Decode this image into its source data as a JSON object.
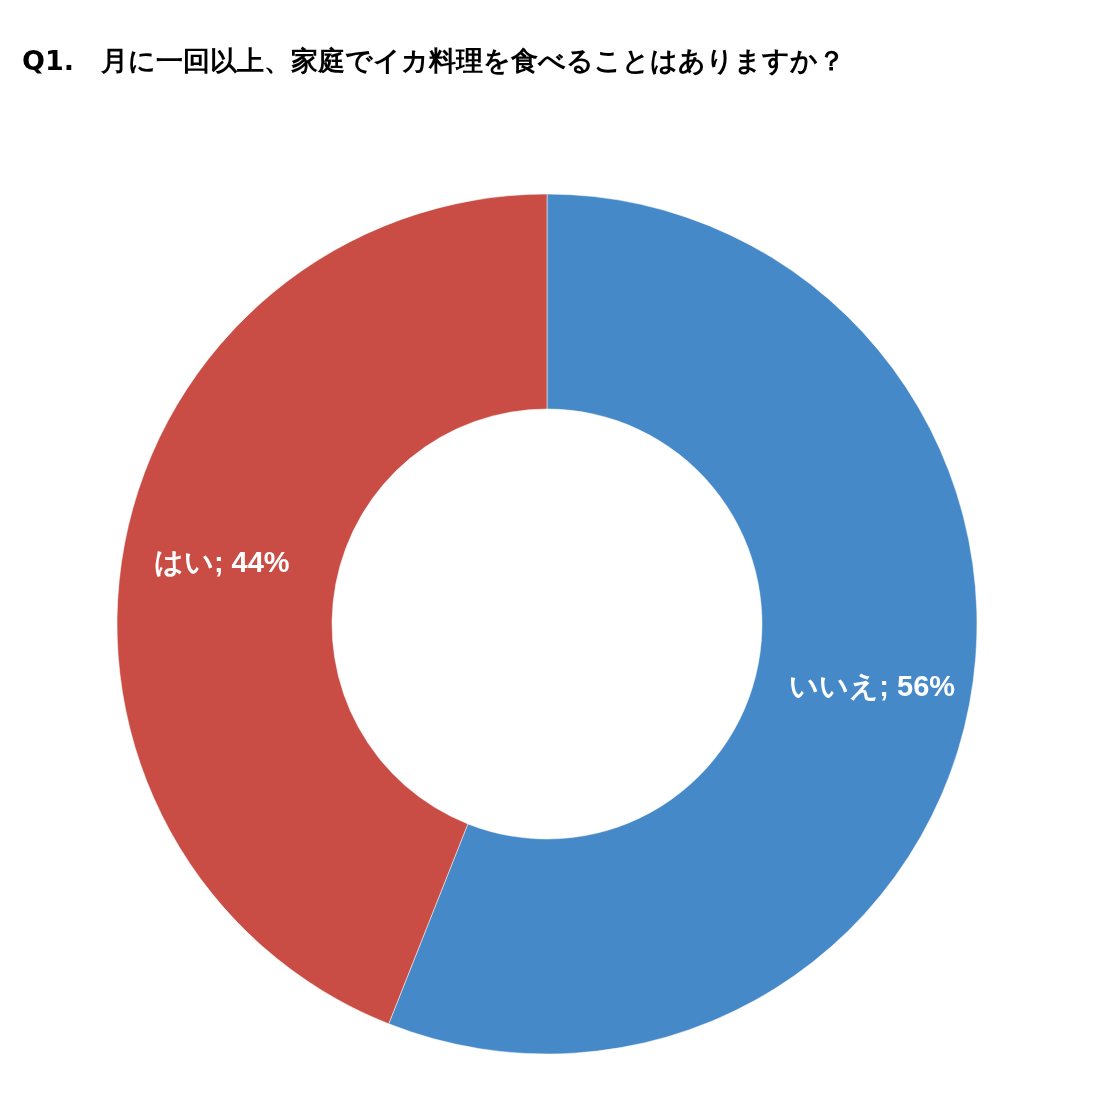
{
  "chart_data": {
    "type": "donut",
    "title": "Q1.　月に一回以上、家庭でイカ料理を食べることはありますか？",
    "categories": [
      "いいえ",
      "はい"
    ],
    "values": [
      56,
      44
    ],
    "colors": [
      "#4589c8",
      "#c94d45"
    ],
    "value_labels": [
      "; 56%",
      "; 44%"
    ]
  }
}
